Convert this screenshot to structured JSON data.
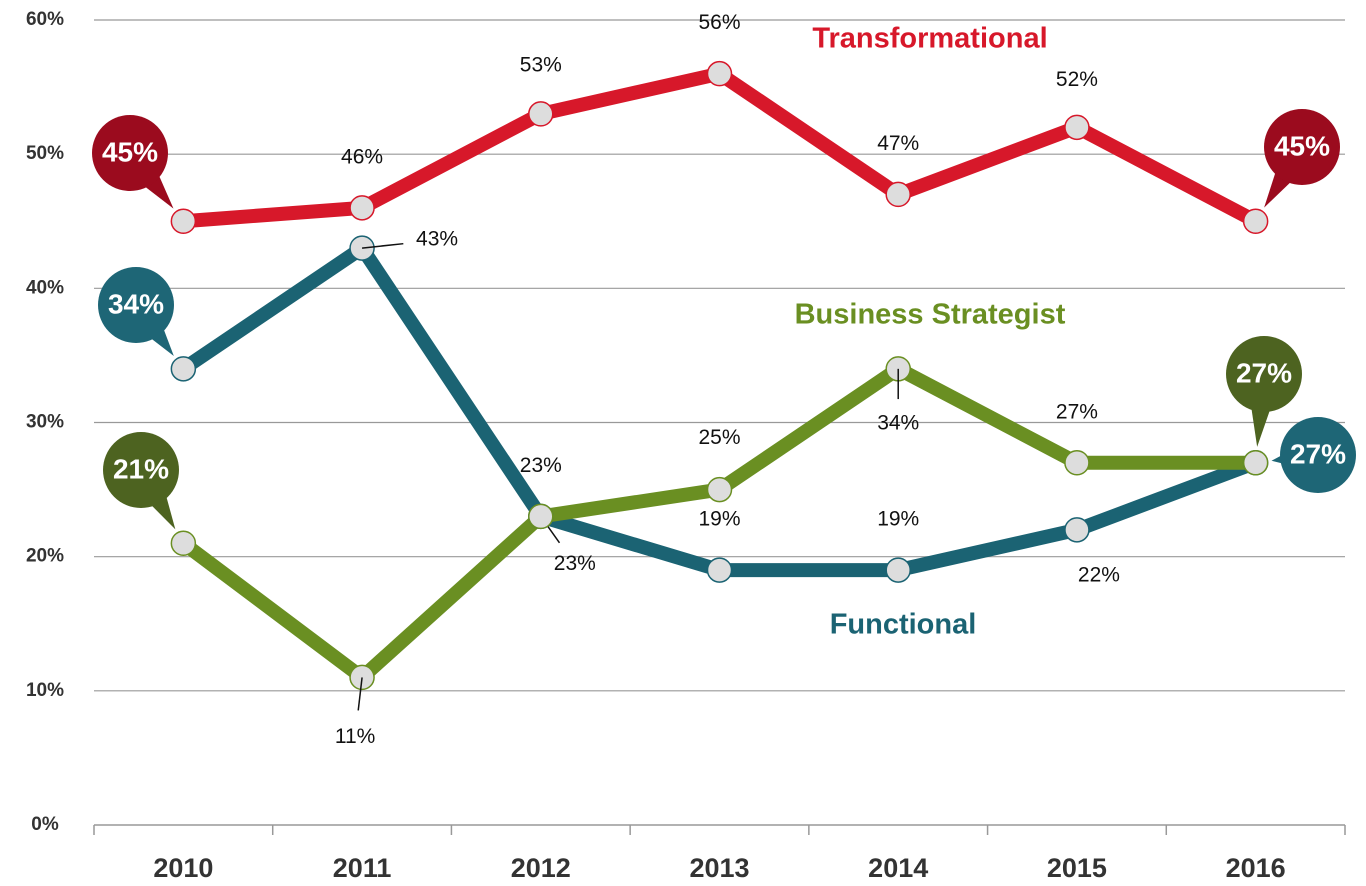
{
  "chart_data": {
    "type": "line",
    "categories": [
      "2010",
      "2011",
      "2012",
      "2013",
      "2014",
      "2015",
      "2016"
    ],
    "ylim": [
      0,
      60
    ],
    "yticks": [
      {
        "value": 0,
        "label": "0%"
      },
      {
        "value": 10,
        "label": "10%"
      },
      {
        "value": 20,
        "label": "20%"
      },
      {
        "value": 30,
        "label": "30%"
      },
      {
        "value": 40,
        "label": "40%"
      },
      {
        "value": 50,
        "label": "50%"
      },
      {
        "value": 60,
        "label": "60%"
      }
    ],
    "grid": true,
    "series": [
      {
        "name": "Transformational",
        "color": "#d7182a",
        "bubble_color": "#9b0b1e",
        "values": [
          45,
          46,
          53,
          56,
          47,
          52,
          45
        ],
        "value_labels": [
          "45%",
          "46%",
          "53%",
          "56%",
          "47%",
          "52%",
          "45%"
        ]
      },
      {
        "name": "Functional",
        "color": "#1b6373",
        "bubble_color": "#1e6676",
        "values": [
          34,
          43,
          23,
          19,
          19,
          22,
          27
        ],
        "value_labels": [
          "34%",
          "43%",
          "23%",
          "19%",
          "19%",
          "22%",
          "27%"
        ]
      },
      {
        "name": "Business Strategist",
        "color": "#6a8f22",
        "bubble_color": "#4d6320",
        "values": [
          21,
          11,
          23,
          25,
          34,
          27,
          27
        ],
        "value_labels": [
          "21%",
          "11%",
          "23%",
          "25%",
          "34%",
          "27%",
          "27%"
        ]
      }
    ]
  }
}
